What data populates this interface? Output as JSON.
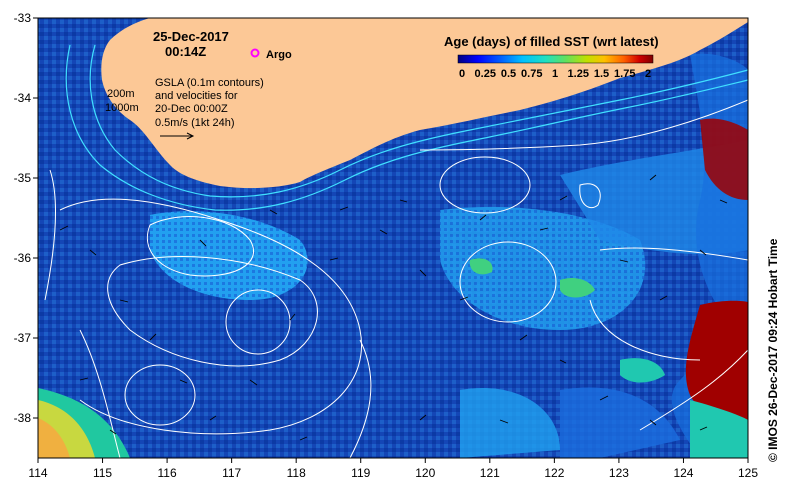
{
  "header": {
    "date": "25-Dec-2017",
    "time": "00:14Z",
    "argo_label": "Argo"
  },
  "gsla_note": {
    "line1": "GSLA (0.1m contours)",
    "line2": "and velocities for",
    "line3": "20-Dec 00:00Z",
    "line4": "0.5m/s (1kt 24h)"
  },
  "depth_labels": {
    "d200": "200m",
    "d1000": "1000m"
  },
  "legend": {
    "title": "Age (days) of filled SST (wrt latest)",
    "ticks": [
      "0",
      "0.25",
      "0.5",
      "0.75",
      "1",
      "1.25",
      "1.5",
      "1.75",
      "2"
    ],
    "range": [
      0,
      2
    ],
    "colors": [
      "#00007f",
      "#0000ff",
      "#0060ff",
      "#00c0ff",
      "#20e0c0",
      "#60e060",
      "#c0e000",
      "#ffc000",
      "#ff6000",
      "#d00000",
      "#800000"
    ]
  },
  "axes": {
    "lon_ticks": [
      "114",
      "115",
      "116",
      "117",
      "118",
      "119",
      "120",
      "121",
      "122",
      "123",
      "124",
      "125"
    ],
    "lat_ticks": [
      "-33",
      "-34",
      "-35",
      "-36",
      "-37",
      "-38"
    ],
    "lon_range": [
      114,
      125
    ],
    "lat_range": [
      -38.5,
      -33
    ]
  },
  "credit": "© IMOS 26-Dec-2017 09:24 Hobart Time",
  "colors": {
    "land": "#fcc896",
    "sea_deep": "#0a3aa0",
    "sea_mid": "#1060d8",
    "sea_light": "#20a8f0",
    "hot": "#a00000",
    "contour": "#ffffff",
    "isobath": "#40e0ff",
    "argo": "#ff00ff"
  }
}
